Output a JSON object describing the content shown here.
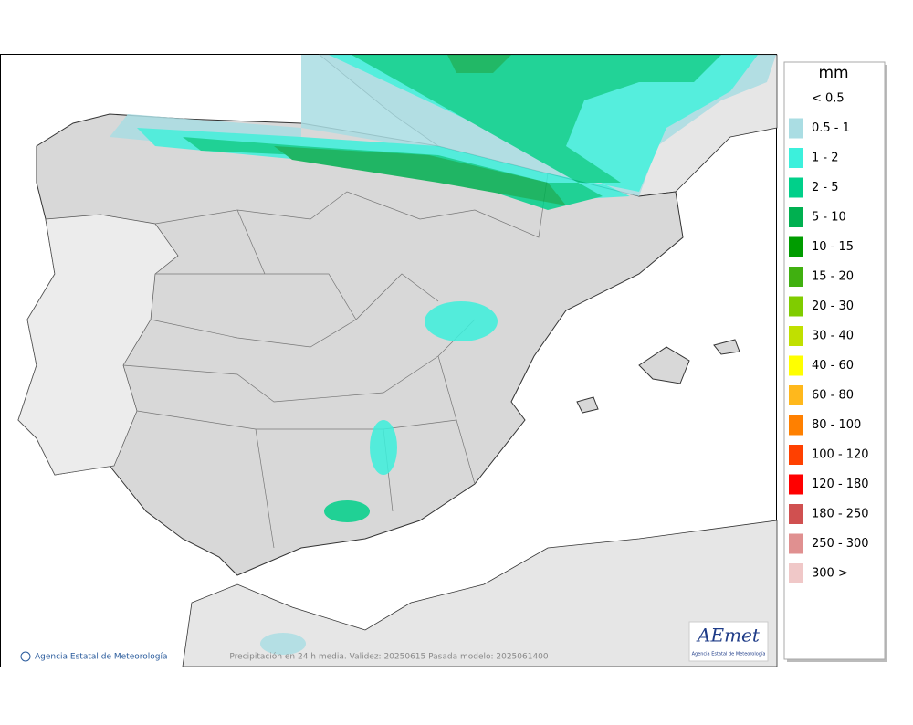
{
  "legend": {
    "title": "mm",
    "entries": [
      {
        "label": "< 0.5",
        "color": "#ffffff"
      },
      {
        "label": "0.5 - 1",
        "color": "#aadde3"
      },
      {
        "label": "1 - 2",
        "color": "#3cf0dc"
      },
      {
        "label": "2 - 5",
        "color": "#00d08a"
      },
      {
        "label": "5 - 10",
        "color": "#00b050"
      },
      {
        "label": "10 - 15",
        "color": "#009c00"
      },
      {
        "label": "15 - 20",
        "color": "#40b010"
      },
      {
        "label": "20 - 30",
        "color": "#80cc00"
      },
      {
        "label": "30 - 40",
        "color": "#c0e000"
      },
      {
        "label": "40 - 60",
        "color": "#ffff00"
      },
      {
        "label": "60 - 80",
        "color": "#ffb81c"
      },
      {
        "label": "80 - 100",
        "color": "#ff8000"
      },
      {
        "label": "100 - 120",
        "color": "#ff4000"
      },
      {
        "label": "120 - 180",
        "color": "#ff0000"
      },
      {
        "label": "180 - 250",
        "color": "#d05050"
      },
      {
        "label": "250 - 300",
        "color": "#e09090"
      },
      {
        "label": "300 >",
        "color": "#f0c8c8"
      }
    ]
  },
  "footer": {
    "credit": "Agencia Estatal de Meteorología",
    "caption": "Precipitación en 24 h media. Validez: 20250615 Pasada modelo: 2025061400"
  },
  "logo": {
    "name": "AEmet",
    "tagline": "Agencia Estatal de Meteorología"
  }
}
